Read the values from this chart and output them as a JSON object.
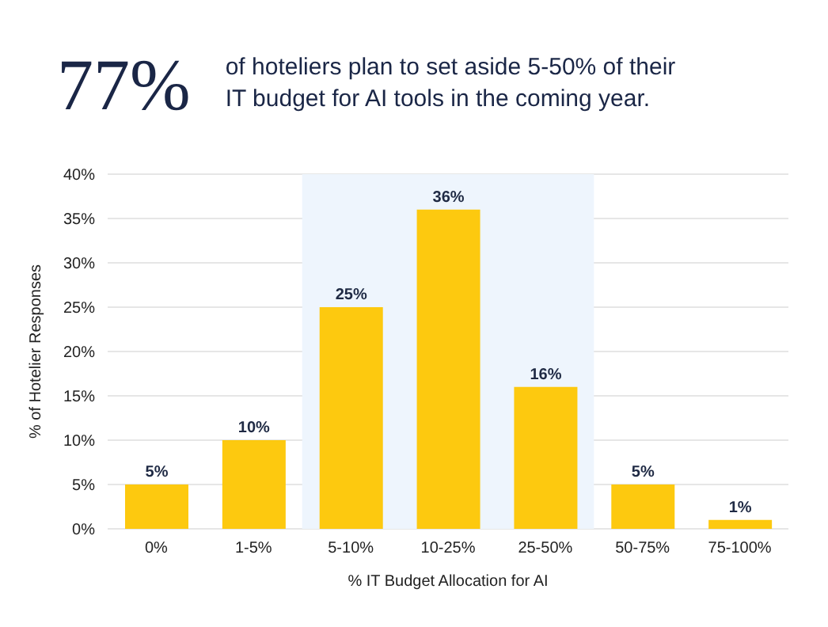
{
  "chart_data": {
    "type": "bar",
    "title": "77%",
    "subtitle": "of hoteliers plan to set aside 5-50% of their IT budget for AI tools in the coming year.",
    "categories": [
      "0%",
      "1-5%",
      "5-10%",
      "10-25%",
      "25-50%",
      "50-75%",
      "75-100%"
    ],
    "values": [
      5,
      10,
      25,
      36,
      16,
      5,
      1
    ],
    "color": "#fdc90f",
    "xlabel": "% IT Budget Allocation for AI",
    "ylabel": "% of Hotelier Responses",
    "ylim": [
      0,
      40
    ],
    "yticks": [
      {
        "value": 0,
        "label": "0%"
      },
      {
        "value": 5,
        "label": "5%"
      },
      {
        "value": 10,
        "label": "10%"
      },
      {
        "value": 15,
        "label": "15%"
      },
      {
        "value": 20,
        "label": "20%"
      },
      {
        "value": 25,
        "label": "25%"
      },
      {
        "value": 30,
        "label": "30%"
      },
      {
        "value": 35,
        "label": "35%"
      },
      {
        "value": 40,
        "label": "40%"
      }
    ],
    "value_labels": [
      "5%",
      "10%",
      "25%",
      "36%",
      "16%",
      "5%",
      "1%"
    ],
    "bands": [
      {
        "axis": "x",
        "from": "5-10%",
        "to": "25-50%",
        "color": "#eef5fd"
      }
    ],
    "grid": "y"
  }
}
